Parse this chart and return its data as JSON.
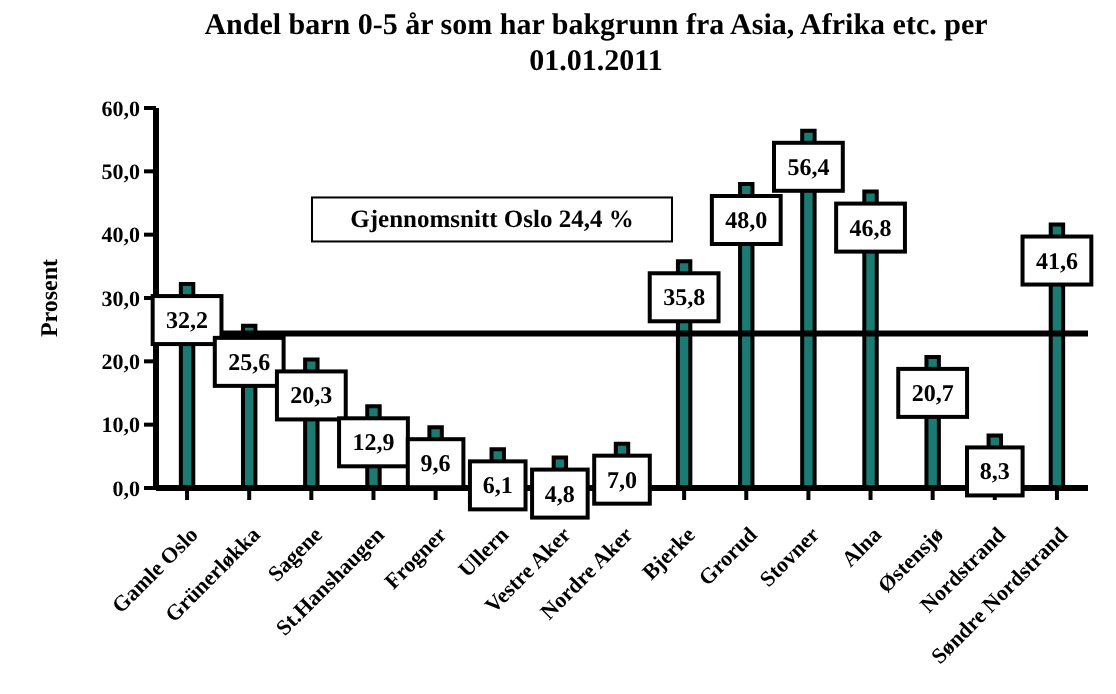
{
  "chart_data": {
    "type": "bar",
    "title": "Andel  barn 0-5 år som har bakgrunn fra Asia, Afrika etc. per 01.01.2011",
    "ylabel": "Prosent",
    "categories": [
      "Gamle Oslo",
      "Grünerløkka",
      "Sagene",
      "St.Hanshaugen",
      "Frogner",
      "Ullern",
      "Vestre Aker",
      "Nordre Aker",
      "Bjerke",
      "Grorud",
      "Stovner",
      "Alna",
      "Østensjø",
      "Nordstrand",
      "Søndre Nordstrand"
    ],
    "values": [
      32.2,
      25.6,
      20.3,
      12.9,
      9.6,
      6.1,
      4.8,
      7.0,
      35.8,
      48.0,
      56.4,
      46.8,
      20.7,
      8.3,
      41.6
    ],
    "value_labels": [
      "32,2",
      "25,6",
      "20,3",
      "12,9",
      "9,6",
      "6,1",
      "4,8",
      "7,0",
      "35,8",
      "48,0",
      "56,4",
      "46,8",
      "20,7",
      "8,3",
      "41,6"
    ],
    "color": "#1b7a72",
    "ylim": [
      0,
      60
    ],
    "yticks": [
      {
        "value": 0,
        "label": "0,0"
      },
      {
        "value": 10,
        "label": "10,0"
      },
      {
        "value": 20,
        "label": "20,0"
      },
      {
        "value": 30,
        "label": "30,0"
      },
      {
        "value": 40,
        "label": "40,0"
      },
      {
        "value": 50,
        "label": "50,0"
      },
      {
        "value": 60,
        "label": "60,0"
      }
    ],
    "ref_lines": [
      {
        "axis": "y",
        "value": 24.4,
        "label": "Gjennomsnitt Oslo 24,4 %",
        "color": "#000000"
      }
    ],
    "grid": false,
    "legend": false
  }
}
